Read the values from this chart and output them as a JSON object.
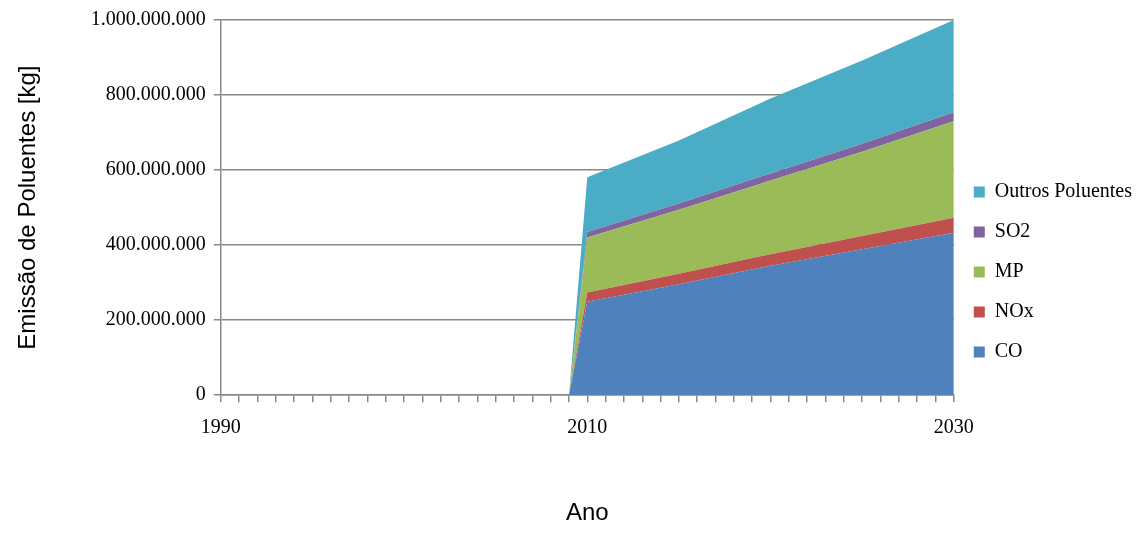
{
  "chart_data": {
    "type": "area",
    "stacked": true,
    "xlabel": "Ano",
    "ylabel": "Emissão de Poluentes [kg]",
    "xlim": [
      1990,
      2030
    ],
    "xticks": [
      1990,
      {
        "value": 1991,
        "label": null
      },
      {
        "value": 1992,
        "label": null
      },
      {
        "value": 1993,
        "label": null
      },
      {
        "value": 1994,
        "label": null
      },
      {
        "value": 1995,
        "label": null
      },
      {
        "value": 1996,
        "label": null
      },
      {
        "value": 1997,
        "label": null
      },
      {
        "value": 1998,
        "label": null
      },
      {
        "value": 1999,
        "label": null
      },
      {
        "value": 2000,
        "label": null
      },
      {
        "value": 2001,
        "label": null
      },
      {
        "value": 2002,
        "label": null
      },
      {
        "value": 2003,
        "label": null
      },
      {
        "value": 2004,
        "label": null
      },
      {
        "value": 2005,
        "label": null
      },
      {
        "value": 2006,
        "label": null
      },
      {
        "value": 2007,
        "label": null
      },
      {
        "value": 2008,
        "label": null
      },
      {
        "value": 2009,
        "label": null
      },
      2010,
      {
        "value": 2011,
        "label": null
      },
      {
        "value": 2012,
        "label": null
      },
      {
        "value": 2013,
        "label": null
      },
      {
        "value": 2014,
        "label": null
      },
      {
        "value": 2015,
        "label": null
      },
      {
        "value": 2016,
        "label": null
      },
      {
        "value": 2017,
        "label": null
      },
      {
        "value": 2018,
        "label": null
      },
      {
        "value": 2019,
        "label": null
      },
      {
        "value": 2020,
        "label": null
      },
      {
        "value": 2021,
        "label": null
      },
      {
        "value": 2022,
        "label": null
      },
      {
        "value": 2023,
        "label": null
      },
      {
        "value": 2024,
        "label": null
      },
      {
        "value": 2025,
        "label": null
      },
      {
        "value": 2026,
        "label": null
      },
      {
        "value": 2027,
        "label": null
      },
      {
        "value": 2028,
        "label": null
      },
      {
        "value": 2029,
        "label": null
      },
      2030
    ],
    "ylim": [
      0,
      1000000000
    ],
    "yticks": [
      0,
      {
        "value": 200000000,
        "label": "200.000.000"
      },
      {
        "value": 400000000,
        "label": "400.000.000"
      },
      {
        "value": 600000000,
        "label": "600.000.000"
      },
      {
        "value": 800000000,
        "label": "800.000.000"
      },
      {
        "value": 1000000000,
        "label": "1.000.000.000"
      }
    ],
    "x": [
      1990,
      2009,
      2010,
      2015,
      2020,
      2025,
      2030
    ],
    "series": [
      {
        "name": "CO",
        "color": "#4f81bd",
        "values": [
          0,
          0,
          249000000,
          296000000,
          345000000,
          389000000,
          433000000
        ]
      },
      {
        "name": "NOx",
        "color": "#c0504d",
        "values": [
          0,
          0,
          25000000,
          28000000,
          31000000,
          35000000,
          40000000
        ]
      },
      {
        "name": "MP",
        "color": "#9bbb59",
        "values": [
          0,
          0,
          146000000,
          170000000,
          196000000,
          225000000,
          257000000
        ]
      },
      {
        "name": "SO2",
        "color": "#8064a2",
        "values": [
          0,
          0,
          15000000,
          17000000,
          19000000,
          21000000,
          24000000
        ]
      },
      {
        "name": "Outros Poluentes",
        "color": "#4bacc6",
        "values": [
          0,
          0,
          146000000,
          168000000,
          200000000,
          222000000,
          246000000
        ]
      }
    ],
    "grid": "y",
    "legend": "right"
  }
}
